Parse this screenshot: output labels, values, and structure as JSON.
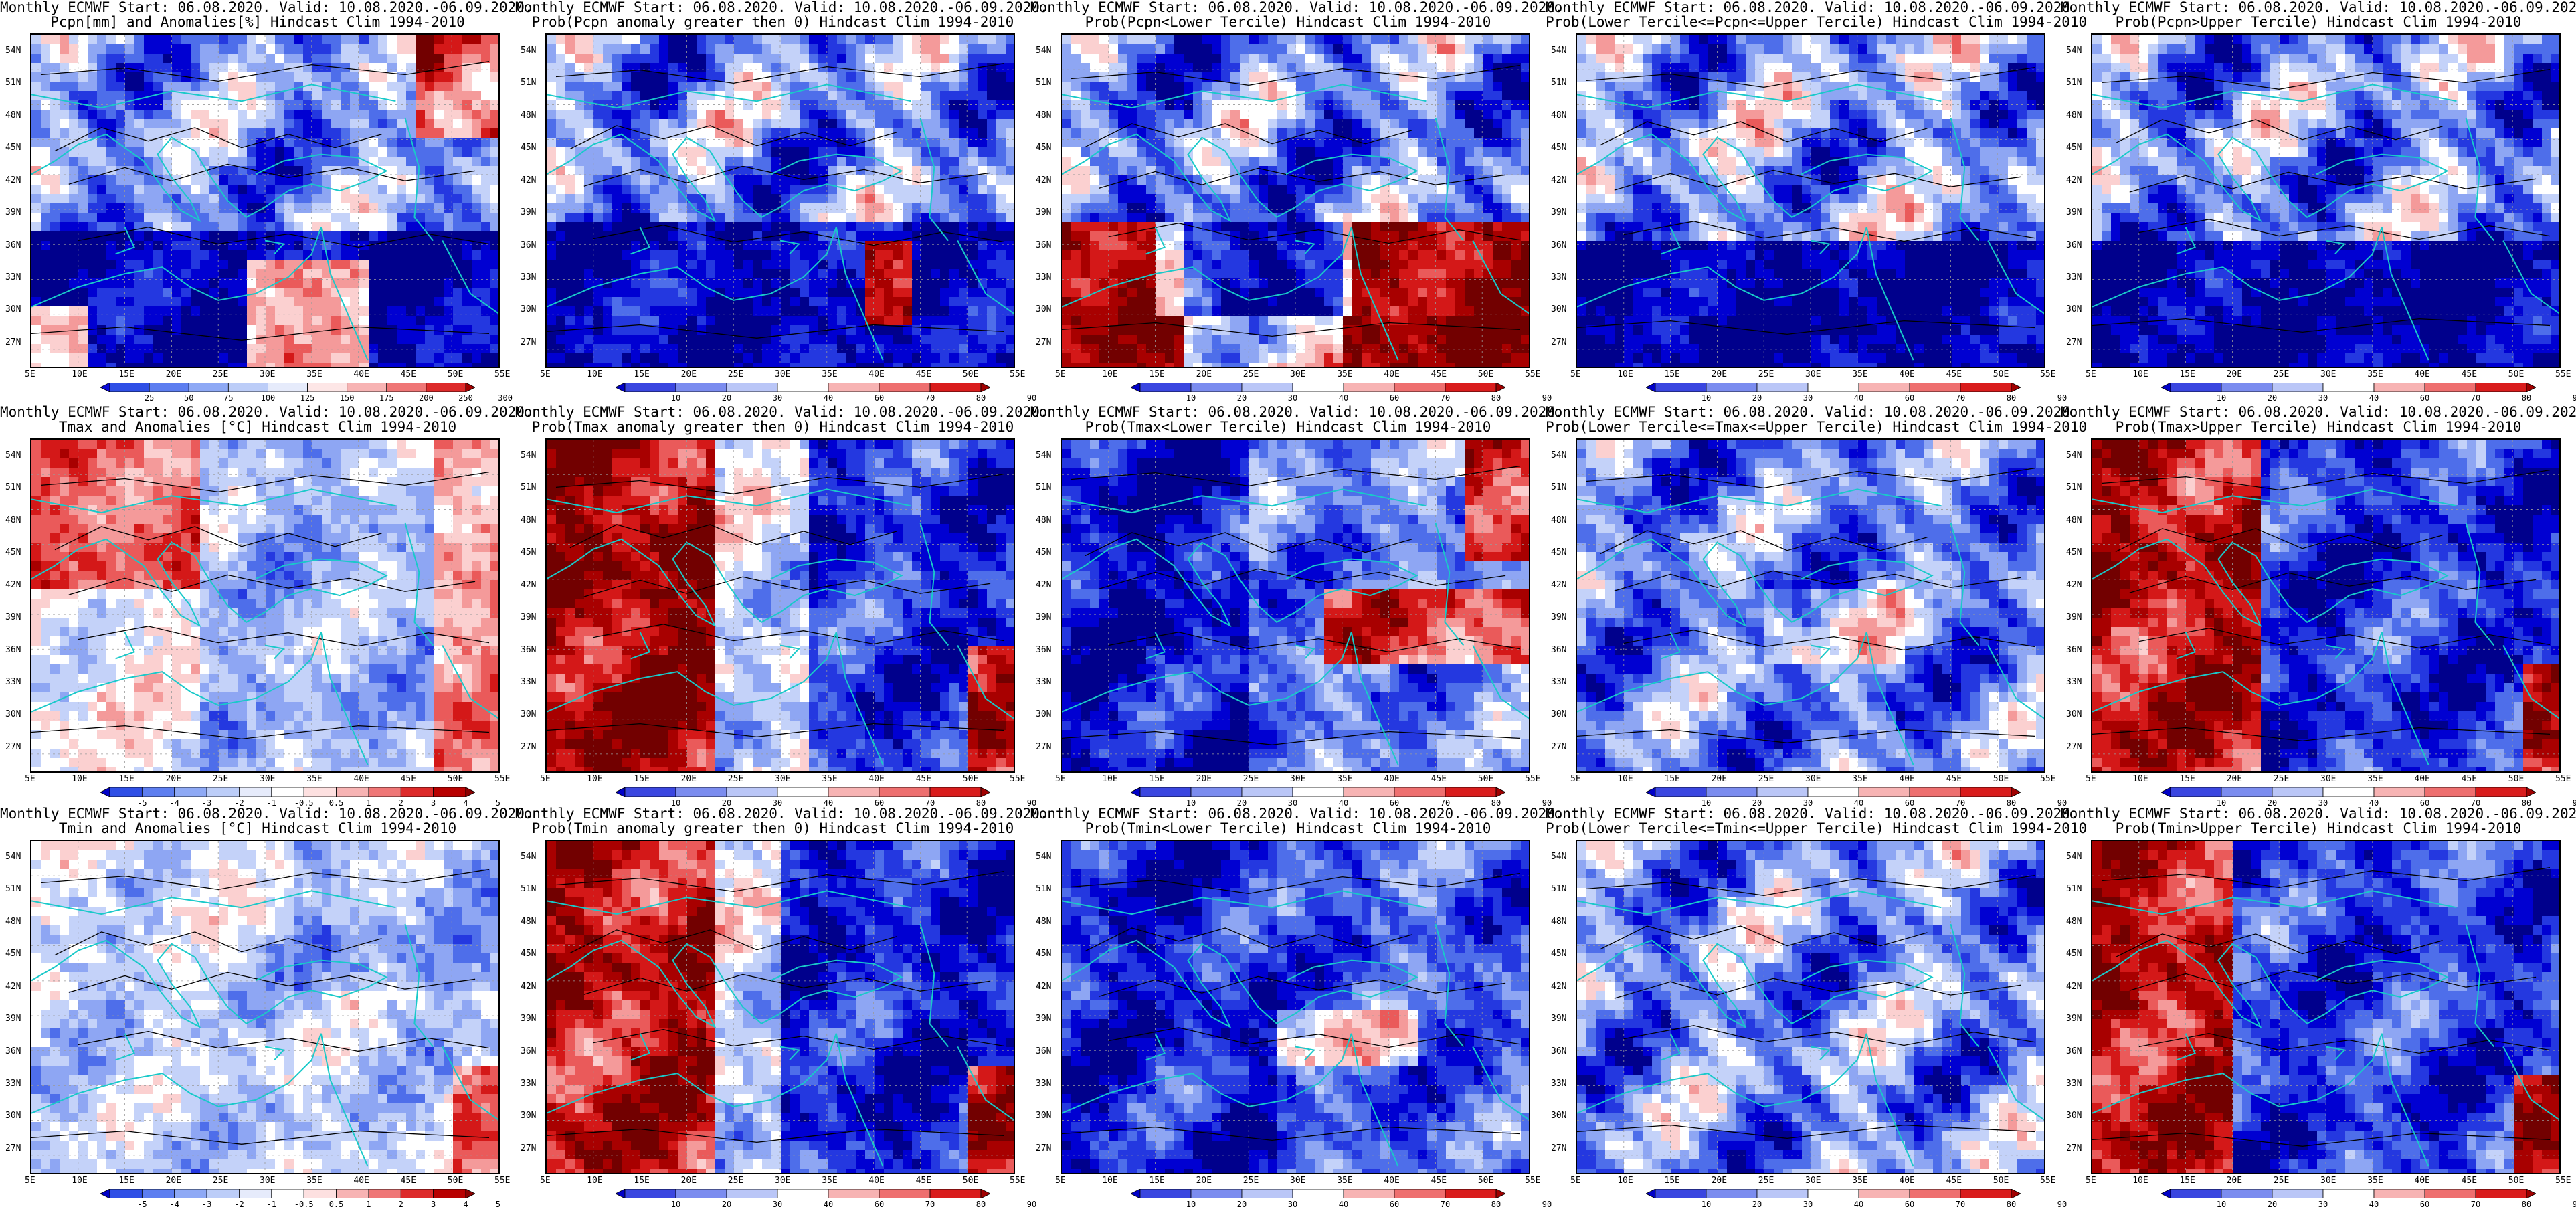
{
  "rows": [
    [
      {
        "line1": "Monthly ECMWF Start: 06.08.2020. Valid: 10.08.2020.-06.09.2020.",
        "line2": "Pcpn[mm] and Anomalies[%] Hindcast Clim 1994-2010",
        "theme": "pcpn_anom",
        "cbar_labels": [
          "25",
          "50",
          "75",
          "100",
          "125",
          "150",
          "175",
          "200",
          "250",
          "300"
        ],
        "cbar_colors": [
          "#0a0ad8",
          "#2f4fe6",
          "#5d7ef0",
          "#8ea9f5",
          "#bccdf8",
          "#e6ebfb",
          "#fde6e6",
          "#f7b3b3",
          "#ef7676",
          "#dd2a2a",
          "#a30000"
        ]
      },
      {
        "line1": "Monthly ECMWF Start: 06.08.2020. Valid: 10.08.2020.-06.09.2020.",
        "line2": "Prob(Pcpn anomaly greater then 0) Hindcast Clim 1994-2010",
        "theme": "pcpn_prob",
        "cbar_labels": [
          "10",
          "20",
          "30",
          "40",
          "60",
          "70",
          "80",
          "90"
        ],
        "cbar_colors": [
          "#0000c8",
          "#3a46e0",
          "#7b8cef",
          "#bac6f7",
          "#ffffff",
          "#f7b3b3",
          "#ee6f6f",
          "#d91c1c",
          "#a00000"
        ]
      },
      {
        "line1": "Monthly ECMWF Start: 06.08.2020. Valid: 10.08.2020.-06.09.2020.",
        "line2": "Prob(Pcpn<Lower Tercile) Hindcast Clim 1994-2010",
        "theme": "pcpn_low",
        "cbar_labels": [
          "10",
          "20",
          "30",
          "40",
          "60",
          "70",
          "80",
          "90"
        ],
        "cbar_colors": [
          "#0000c8",
          "#3a46e0",
          "#7b8cef",
          "#bac6f7",
          "#ffffff",
          "#f7b3b3",
          "#ee6f6f",
          "#d91c1c",
          "#a00000"
        ]
      },
      {
        "line1": "Monthly ECMWF Start: 06.08.2020. Valid: 10.08.2020.-06.09.2020.",
        "line2": "Prob(Lower Tercile<=Pcpn<=Upper Tercile) Hindcast Clim 1994-2010",
        "theme": "pcpn_mid",
        "cbar_labels": [
          "10",
          "20",
          "30",
          "40",
          "60",
          "70",
          "80",
          "90"
        ],
        "cbar_colors": [
          "#0000c8",
          "#3a46e0",
          "#7b8cef",
          "#bac6f7",
          "#ffffff",
          "#f7b3b3",
          "#ee6f6f",
          "#d91c1c",
          "#a00000"
        ]
      },
      {
        "line1": "Monthly ECMWF Start: 06.08.2020. Valid: 10.08.2020.-06.09.2020.",
        "line2": "Prob(Pcpn>Upper Tercile) Hindcast Clim 1994-2010",
        "theme": "pcpn_high",
        "cbar_labels": [
          "10",
          "20",
          "30",
          "40",
          "60",
          "70",
          "80",
          "90"
        ],
        "cbar_colors": [
          "#0000c8",
          "#3a46e0",
          "#7b8cef",
          "#bac6f7",
          "#ffffff",
          "#f7b3b3",
          "#ee6f6f",
          "#d91c1c",
          "#a00000"
        ]
      }
    ],
    [
      {
        "line1": "Monthly ECMWF Start: 06.08.2020. Valid: 10.08.2020.-06.09.2020.",
        "line2": "Tmax and Anomalies [°C] Hindcast Clim 1994-2010",
        "theme": "tmax_anom",
        "cbar_labels": [
          "-5",
          "-4",
          "-3",
          "-2",
          "-1",
          "-0.5",
          "0.5",
          "1",
          "2",
          "3",
          "4",
          "5"
        ],
        "cbar_colors": [
          "#0000c8",
          "#2f4fe6",
          "#5d7ef0",
          "#8ea9f5",
          "#bccdf8",
          "#e6ebfb",
          "#ffffff",
          "#fde0e0",
          "#f7b3b3",
          "#ef7676",
          "#dd2a2a",
          "#b80000",
          "#8a0000"
        ]
      },
      {
        "line1": "Monthly ECMWF Start: 06.08.2020. Valid: 10.08.2020.-06.09.2020.",
        "line2": "Prob(Tmax anomaly greater then 0) Hindcast Clim 1994-2010",
        "theme": "tmax_prob",
        "cbar_labels": [
          "10",
          "20",
          "30",
          "40",
          "60",
          "70",
          "80",
          "90"
        ],
        "cbar_colors": [
          "#0000c8",
          "#3a46e0",
          "#7b8cef",
          "#bac6f7",
          "#ffffff",
          "#f7b3b3",
          "#ee6f6f",
          "#d91c1c",
          "#a00000"
        ]
      },
      {
        "line1": "Monthly ECMWF Start: 06.08.2020. Valid: 10.08.2020.-06.09.2020.",
        "line2": "Prob(Tmax<Lower Tercile) Hindcast Clim 1994-2010",
        "theme": "tmax_low",
        "cbar_labels": [
          "10",
          "20",
          "30",
          "40",
          "60",
          "70",
          "80",
          "90"
        ],
        "cbar_colors": [
          "#0000c8",
          "#3a46e0",
          "#7b8cef",
          "#bac6f7",
          "#ffffff",
          "#f7b3b3",
          "#ee6f6f",
          "#d91c1c",
          "#a00000"
        ]
      },
      {
        "line1": "Monthly ECMWF Start: 06.08.2020. Valid: 10.08.2020.-06.09.2020.",
        "line2": "Prob(Lower Tercile<=Tmax<=Upper Tercile) Hindcast Clim 1994-2010",
        "theme": "tmax_mid",
        "cbar_labels": [
          "10",
          "20",
          "30",
          "40",
          "60",
          "70",
          "80",
          "90"
        ],
        "cbar_colors": [
          "#0000c8",
          "#3a46e0",
          "#7b8cef",
          "#bac6f7",
          "#ffffff",
          "#f7b3b3",
          "#ee6f6f",
          "#d91c1c",
          "#a00000"
        ]
      },
      {
        "line1": "Monthly ECMWF Start: 06.08.2020. Valid: 10.08.2020.-06.09.2020.",
        "line2": "Prob(Tmax>Upper Tercile) Hindcast Clim 1994-2010",
        "theme": "tmax_high",
        "cbar_labels": [
          "10",
          "20",
          "30",
          "40",
          "60",
          "70",
          "80",
          "90"
        ],
        "cbar_colors": [
          "#0000c8",
          "#3a46e0",
          "#7b8cef",
          "#bac6f7",
          "#ffffff",
          "#f7b3b3",
          "#ee6f6f",
          "#d91c1c",
          "#a00000"
        ]
      }
    ],
    [
      {
        "line1": "Monthly ECMWF Start: 06.08.2020. Valid: 10.08.2020.-06.09.2020.",
        "line2": "Tmin and Anomalies [°C] Hindcast Clim 1994-2010",
        "theme": "tmin_anom",
        "cbar_labels": [
          "-5",
          "-4",
          "-3",
          "-2",
          "-1",
          "-0.5",
          "0.5",
          "1",
          "2",
          "3",
          "4",
          "5"
        ],
        "cbar_colors": [
          "#0000c8",
          "#2f4fe6",
          "#5d7ef0",
          "#8ea9f5",
          "#bccdf8",
          "#e6ebfb",
          "#ffffff",
          "#fde0e0",
          "#f7b3b3",
          "#ef7676",
          "#dd2a2a",
          "#b80000",
          "#8a0000"
        ]
      },
      {
        "line1": "Monthly ECMWF Start: 06.08.2020. Valid: 10.08.2020.-06.09.2020.",
        "line2": "Prob(Tmin anomaly greater then 0) Hindcast Clim 1994-2010",
        "theme": "tmin_prob",
        "cbar_labels": [
          "10",
          "20",
          "30",
          "40",
          "60",
          "70",
          "80",
          "90"
        ],
        "cbar_colors": [
          "#0000c8",
          "#3a46e0",
          "#7b8cef",
          "#bac6f7",
          "#ffffff",
          "#f7b3b3",
          "#ee6f6f",
          "#d91c1c",
          "#a00000"
        ]
      },
      {
        "line1": "Monthly ECMWF Start: 06.08.2020. Valid: 10.08.2020.-06.09.2020.",
        "line2": "Prob(Tmin<Lower Tercile) Hindcast Clim 1994-2010",
        "theme": "tmin_low",
        "cbar_labels": [
          "10",
          "20",
          "30",
          "40",
          "60",
          "70",
          "80",
          "90"
        ],
        "cbar_colors": [
          "#0000c8",
          "#3a46e0",
          "#7b8cef",
          "#bac6f7",
          "#ffffff",
          "#f7b3b3",
          "#ee6f6f",
          "#d91c1c",
          "#a00000"
        ]
      },
      {
        "line1": "Monthly ECMWF Start: 06.08.2020. Valid: 10.08.2020.-06.09.2020.",
        "line2": "Prob(Lower Tercile<=Tmin<=Upper Tercile) Hindcast Clim 1994-2010",
        "theme": "tmin_mid",
        "cbar_labels": [
          "10",
          "20",
          "30",
          "40",
          "60",
          "70",
          "80",
          "90"
        ],
        "cbar_colors": [
          "#0000c8",
          "#3a46e0",
          "#7b8cef",
          "#bac6f7",
          "#ffffff",
          "#f7b3b3",
          "#ee6f6f",
          "#d91c1c",
          "#a00000"
        ]
      },
      {
        "line1": "Monthly ECMWF Start: 06.08.2020. Valid: 10.08.2020.-06.09.2020.",
        "line2": "Prob(Tmin>Upper Tercile) Hindcast Clim 1994-2010",
        "theme": "tmin_high",
        "cbar_labels": [
          "10",
          "20",
          "30",
          "40",
          "60",
          "70",
          "80",
          "90"
        ],
        "cbar_colors": [
          "#0000c8",
          "#3a46e0",
          "#7b8cef",
          "#bac6f7",
          "#ffffff",
          "#f7b3b3",
          "#ee6f6f",
          "#d91c1c",
          "#a00000"
        ]
      }
    ]
  ],
  "lat_labels": [
    "54N",
    "51N",
    "48N",
    "45N",
    "42N",
    "39N",
    "36N",
    "33N",
    "30N",
    "27N"
  ],
  "lon_labels": [
    "5E",
    "10E",
    "15E",
    "20E",
    "25E",
    "30E",
    "35E",
    "40E",
    "45E",
    "50E",
    "55E"
  ],
  "colors": {
    "coast": "#19c9c9",
    "contour": "#000000",
    "grid": "#9a9a9a"
  }
}
